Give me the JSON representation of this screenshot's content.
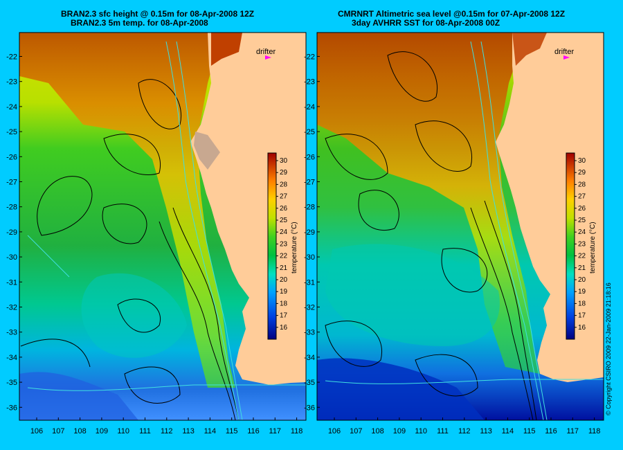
{
  "left_panel": {
    "title_line1": "BRAN2.3 sfc height @ 0.15m for 08-Apr-2008 12Z",
    "title_line2": "BRAN2.3 5m temp. for 08-Apr-2008",
    "drifter_label": "drifter"
  },
  "right_panel": {
    "title_line1": "CMRNRT Altimetric sea level  @0.15m  for 07-Apr-2008 12Z",
    "title_line2": "3day AVHRR SST for 08-Apr-2008 00Z",
    "drifter_label": "drifter"
  },
  "lat_ticks": [
    "-22",
    "-23",
    "-24",
    "-25",
    "-26",
    "-27",
    "-28",
    "-29",
    "-30",
    "-31",
    "-32",
    "-33",
    "-34",
    "-35",
    "-36"
  ],
  "lon_ticks": [
    "106",
    "107",
    "108",
    "109",
    "110",
    "111",
    "112",
    "113",
    "114",
    "115",
    "116",
    "117",
    "118"
  ],
  "colorbar": {
    "label": "temperature (°C)",
    "ticks": [
      "30",
      "29",
      "28",
      "27",
      "26",
      "25",
      "24",
      "23",
      "22",
      "21",
      "20",
      "19",
      "18",
      "17",
      "16"
    ]
  },
  "credit": "© Copyright CSIRO 2009   22-Jan-2009 21:18:16",
  "colors": {
    "background": "#00ccff",
    "land": "#ffcc99",
    "drifter": "#ff00ff"
  }
}
